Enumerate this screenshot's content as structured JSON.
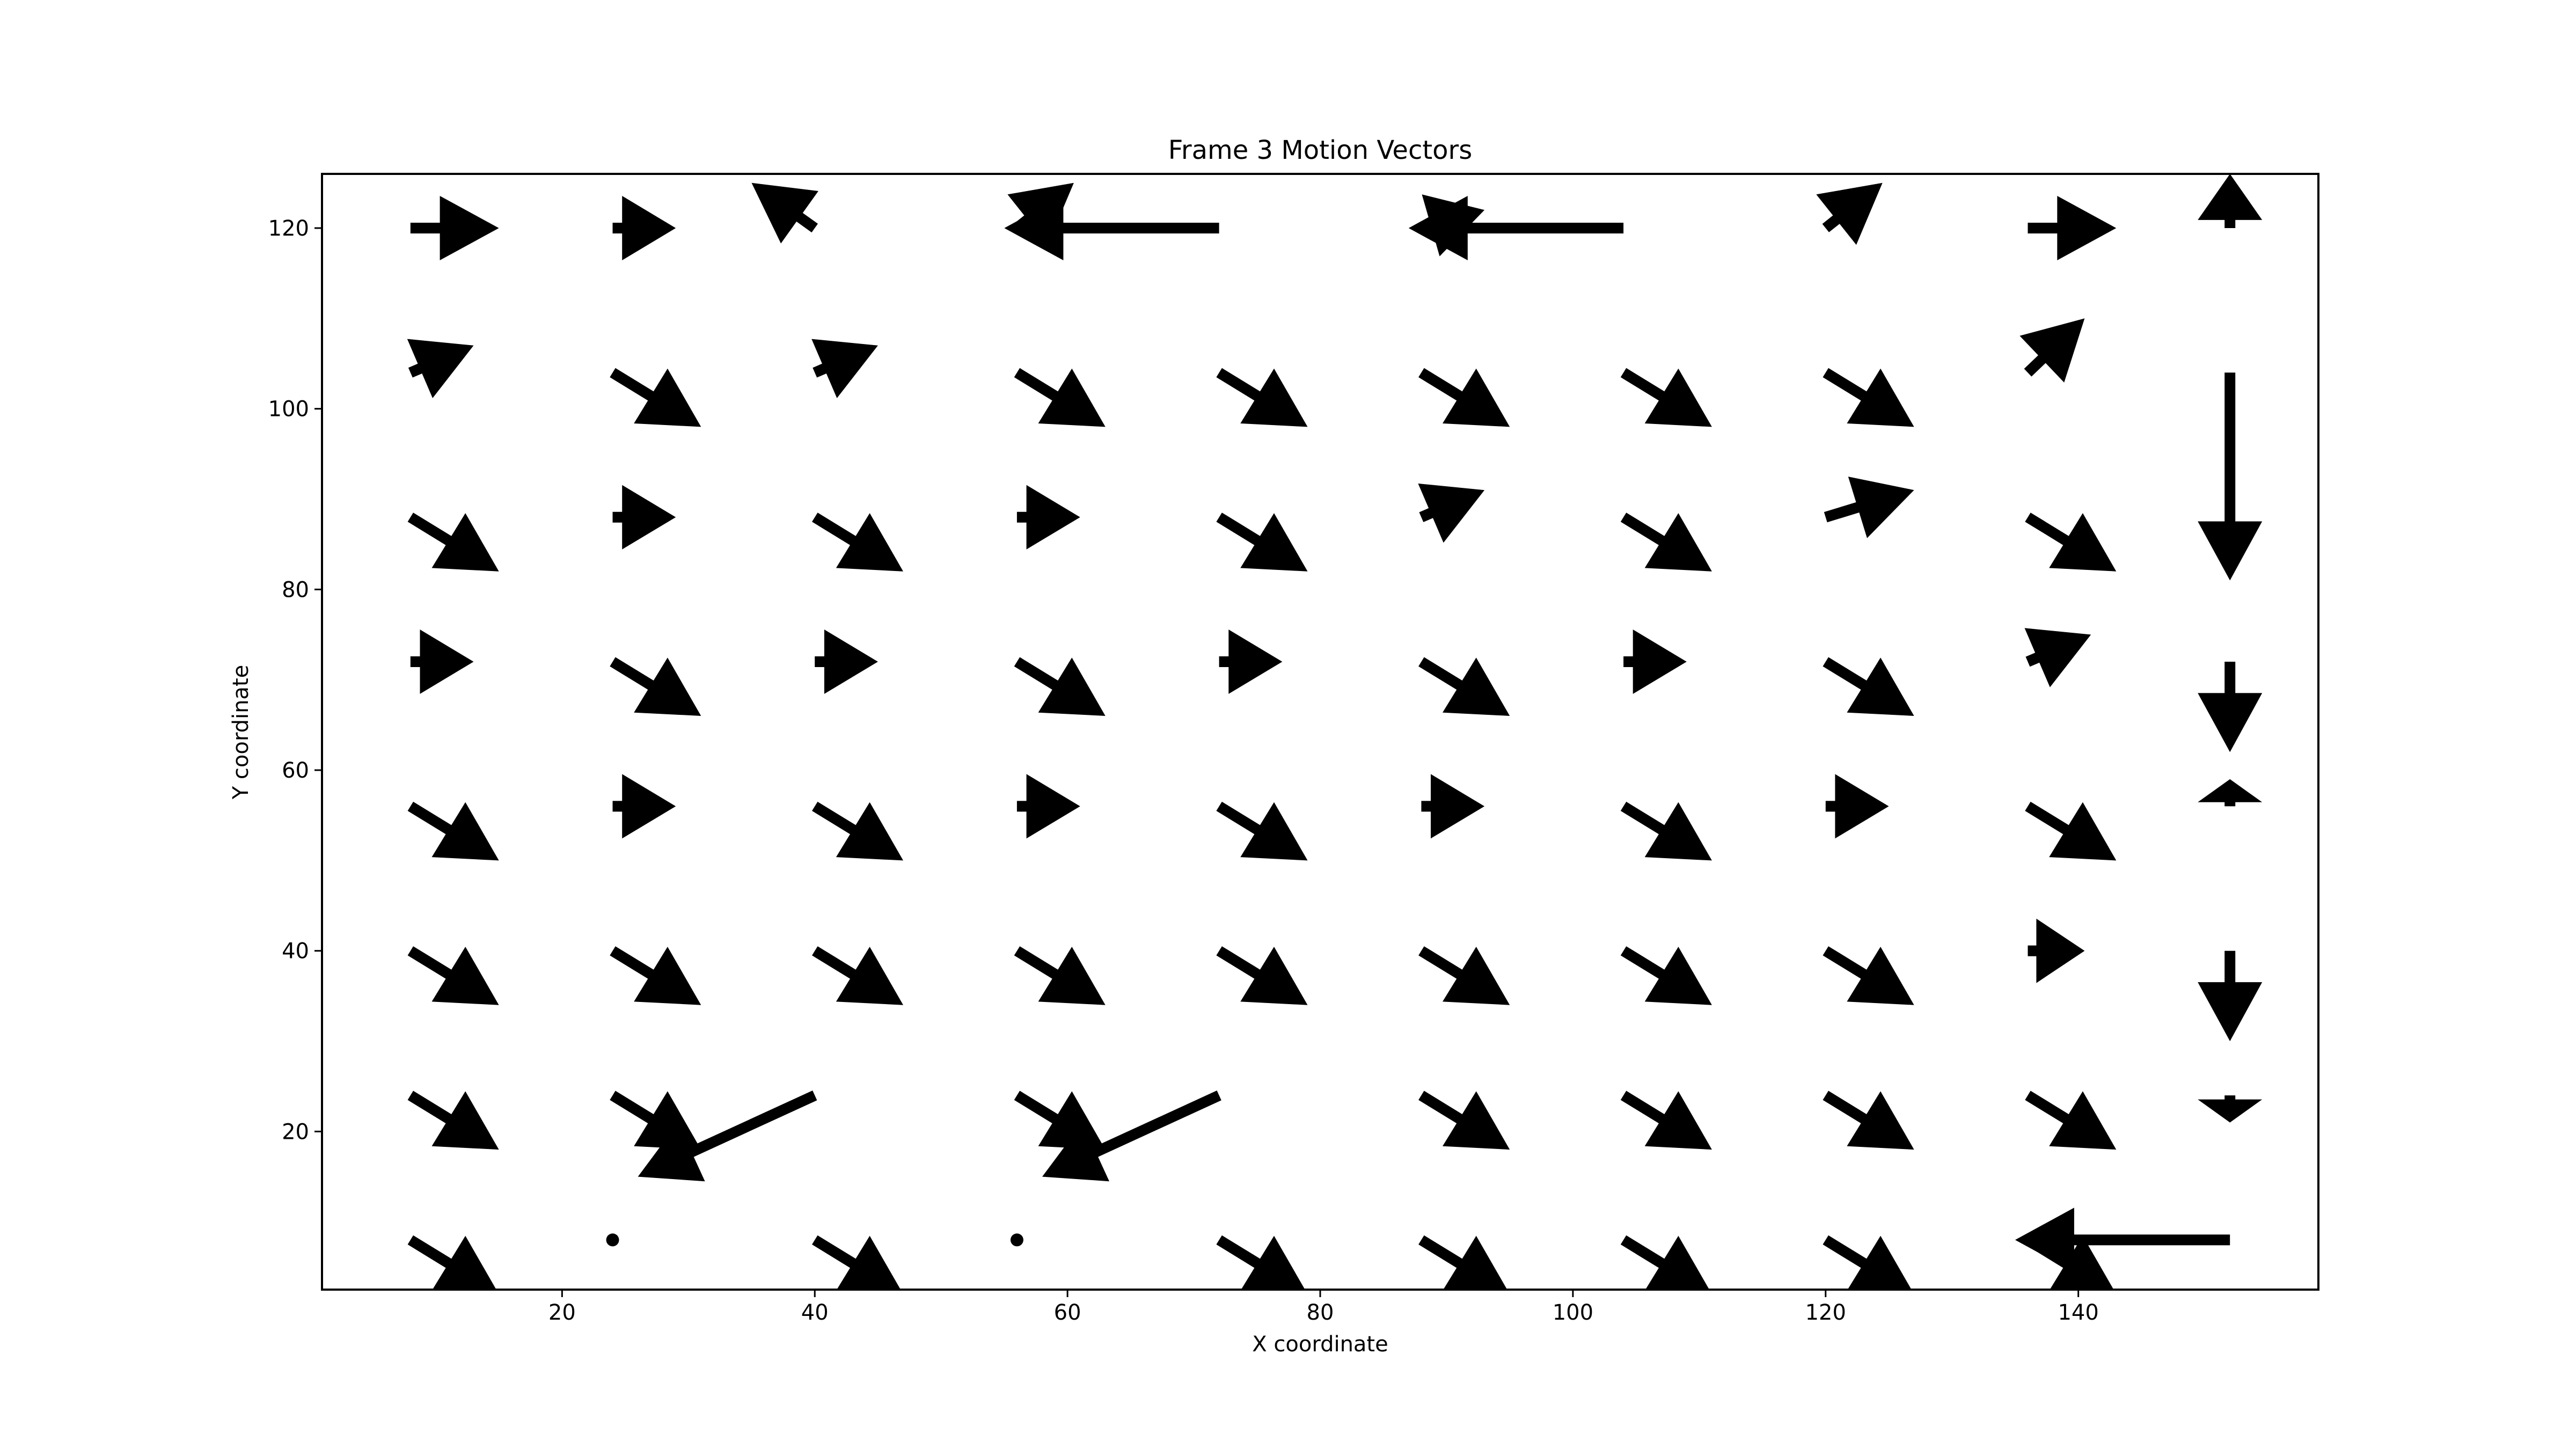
{
  "chart_data": {
    "type": "quiver",
    "title": "Frame 3 Motion Vectors",
    "xlabel": "X coordinate",
    "ylabel": "Y coordinate",
    "xlim": [
      1,
      159
    ],
    "ylim": [
      2.5,
      126
    ],
    "xticks": [
      20,
      40,
      60,
      80,
      100,
      120,
      140
    ],
    "yticks": [
      20,
      40,
      60,
      80,
      100,
      120
    ],
    "grid": false,
    "vector_color": "#000000",
    "vectors": [
      {
        "x": 8,
        "y": 120,
        "u": 7,
        "v": 0
      },
      {
        "x": 24,
        "y": 120,
        "u": 5,
        "v": 0
      },
      {
        "x": 40,
        "y": 120,
        "u": -5,
        "v": 5
      },
      {
        "x": 72,
        "y": 120,
        "u": -17,
        "v": 0
      },
      {
        "x": 56,
        "y": 120,
        "u": 4.5,
        "v": 5
      },
      {
        "x": 104,
        "y": 120,
        "u": -17,
        "v": 0
      },
      {
        "x": 88,
        "y": 120,
        "u": 5,
        "v": 2
      },
      {
        "x": 120,
        "y": 120,
        "u": 4.5,
        "v": 5
      },
      {
        "x": 136,
        "y": 120,
        "u": 7,
        "v": 0
      },
      {
        "x": 152,
        "y": 120,
        "u": 0,
        "v": 6
      },
      {
        "x": 8,
        "y": 104,
        "u": 5,
        "v": 3
      },
      {
        "x": 24,
        "y": 104,
        "u": 7,
        "v": -6
      },
      {
        "x": 40,
        "y": 104,
        "u": 5,
        "v": 3
      },
      {
        "x": 56,
        "y": 104,
        "u": 7,
        "v": -6
      },
      {
        "x": 72,
        "y": 104,
        "u": 7,
        "v": -6
      },
      {
        "x": 88,
        "y": 104,
        "u": 7,
        "v": -6
      },
      {
        "x": 104,
        "y": 104,
        "u": 7,
        "v": -6
      },
      {
        "x": 120,
        "y": 104,
        "u": 7,
        "v": -6
      },
      {
        "x": 136,
        "y": 104,
        "u": 4.5,
        "v": 6
      },
      {
        "x": 152,
        "y": 104,
        "u": 0,
        "v": -23
      },
      {
        "x": 8,
        "y": 88,
        "u": 7,
        "v": -6
      },
      {
        "x": 24,
        "y": 88,
        "u": 5,
        "v": 0
      },
      {
        "x": 40,
        "y": 88,
        "u": 7,
        "v": -6
      },
      {
        "x": 56,
        "y": 88,
        "u": 5,
        "v": 0
      },
      {
        "x": 72,
        "y": 88,
        "u": 7,
        "v": -6
      },
      {
        "x": 88,
        "y": 88,
        "u": 5,
        "v": 3
      },
      {
        "x": 104,
        "y": 88,
        "u": 7,
        "v": -6
      },
      {
        "x": 120,
        "y": 88,
        "u": 7,
        "v": 3
      },
      {
        "x": 136,
        "y": 88,
        "u": 7,
        "v": -6
      },
      {
        "x": 8,
        "y": 72,
        "u": 5,
        "v": 0
      },
      {
        "x": 24,
        "y": 72,
        "u": 7,
        "v": -6
      },
      {
        "x": 40,
        "y": 72,
        "u": 5,
        "v": 0
      },
      {
        "x": 56,
        "y": 72,
        "u": 7,
        "v": -6
      },
      {
        "x": 72,
        "y": 72,
        "u": 5,
        "v": 0
      },
      {
        "x": 88,
        "y": 72,
        "u": 7,
        "v": -6
      },
      {
        "x": 104,
        "y": 72,
        "u": 5,
        "v": 0
      },
      {
        "x": 120,
        "y": 72,
        "u": 7,
        "v": -6
      },
      {
        "x": 136,
        "y": 72,
        "u": 5,
        "v": 3
      },
      {
        "x": 152,
        "y": 72,
        "u": 0,
        "v": -10
      },
      {
        "x": 8,
        "y": 56,
        "u": 7,
        "v": -6
      },
      {
        "x": 24,
        "y": 56,
        "u": 5,
        "v": 0
      },
      {
        "x": 40,
        "y": 56,
        "u": 7,
        "v": -6
      },
      {
        "x": 56,
        "y": 56,
        "u": 5,
        "v": 0
      },
      {
        "x": 72,
        "y": 56,
        "u": 7,
        "v": -6
      },
      {
        "x": 88,
        "y": 56,
        "u": 5,
        "v": 0
      },
      {
        "x": 104,
        "y": 56,
        "u": 7,
        "v": -6
      },
      {
        "x": 120,
        "y": 56,
        "u": 5,
        "v": 0
      },
      {
        "x": 136,
        "y": 56,
        "u": 7,
        "v": -6
      },
      {
        "x": 152,
        "y": 56,
        "u": 0,
        "v": 3
      },
      {
        "x": 8,
        "y": 40,
        "u": 7,
        "v": -6
      },
      {
        "x": 24,
        "y": 40,
        "u": 7,
        "v": -6
      },
      {
        "x": 40,
        "y": 40,
        "u": 7,
        "v": -6
      },
      {
        "x": 56,
        "y": 40,
        "u": 7,
        "v": -6
      },
      {
        "x": 72,
        "y": 40,
        "u": 7,
        "v": -6
      },
      {
        "x": 88,
        "y": 40,
        "u": 7,
        "v": -6
      },
      {
        "x": 104,
        "y": 40,
        "u": 7,
        "v": -6
      },
      {
        "x": 120,
        "y": 40,
        "u": 7,
        "v": -6
      },
      {
        "x": 136,
        "y": 40,
        "u": 4.5,
        "v": 0
      },
      {
        "x": 152,
        "y": 40,
        "u": 0,
        "v": -10
      },
      {
        "x": 8,
        "y": 24,
        "u": 7,
        "v": -6
      },
      {
        "x": 24,
        "y": 24,
        "u": 7,
        "v": -6
      },
      {
        "x": 40,
        "y": 24,
        "u": -14,
        "v": -9
      },
      {
        "x": 56,
        "y": 24,
        "u": 7,
        "v": -6
      },
      {
        "x": 72,
        "y": 24,
        "u": -14,
        "v": -9
      },
      {
        "x": 88,
        "y": 24,
        "u": 7,
        "v": -6
      },
      {
        "x": 104,
        "y": 24,
        "u": 7,
        "v": -6
      },
      {
        "x": 120,
        "y": 24,
        "u": 7,
        "v": -6
      },
      {
        "x": 136,
        "y": 24,
        "u": 7,
        "v": -6
      },
      {
        "x": 152,
        "y": 24,
        "u": 0,
        "v": -3
      },
      {
        "x": 8,
        "y": 8,
        "u": 7,
        "v": -6
      },
      {
        "x": 24,
        "y": 8,
        "u": 0,
        "v": 0
      },
      {
        "x": 40,
        "y": 8,
        "u": 7,
        "v": -6
      },
      {
        "x": 56,
        "y": 8,
        "u": 0,
        "v": 0
      },
      {
        "x": 72,
        "y": 8,
        "u": 7,
        "v": -6
      },
      {
        "x": 88,
        "y": 8,
        "u": 7,
        "v": -6
      },
      {
        "x": 104,
        "y": 8,
        "u": 7,
        "v": -6
      },
      {
        "x": 120,
        "y": 8,
        "u": 7,
        "v": -6
      },
      {
        "x": 152,
        "y": 8,
        "u": -17,
        "v": 0
      },
      {
        "x": 136,
        "y": 8,
        "u": 7,
        "v": -6
      }
    ]
  }
}
